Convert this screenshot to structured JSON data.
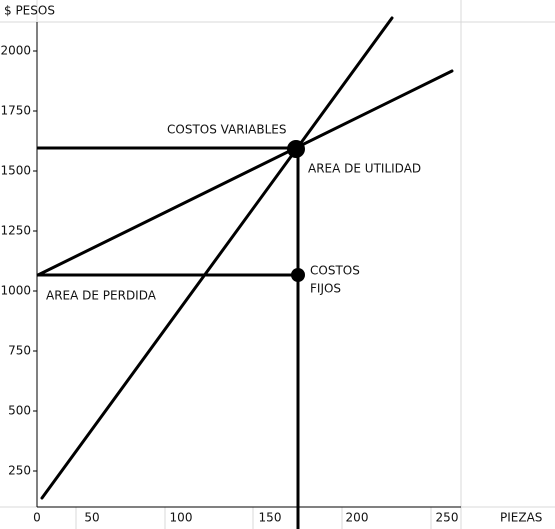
{
  "chart": {
    "y_axis_title": "$ PESOS",
    "x_axis_title": "PIEZAS",
    "y_ticks": [
      "2000",
      "1750",
      "1500",
      "1250",
      "1000",
      "750",
      "500",
      "250"
    ],
    "x_ticks": [
      "0",
      "50",
      "100",
      "150",
      "200",
      "250"
    ],
    "annotations": {
      "variable_costs": "COSTOS VARIABLES",
      "profit_area": "AREA DE UTILIDAD",
      "fixed_costs_1": "COSTOS",
      "fixed_costs_2": "FIJOS",
      "loss_area": "AREA DE PERDIDA"
    }
  }
}
